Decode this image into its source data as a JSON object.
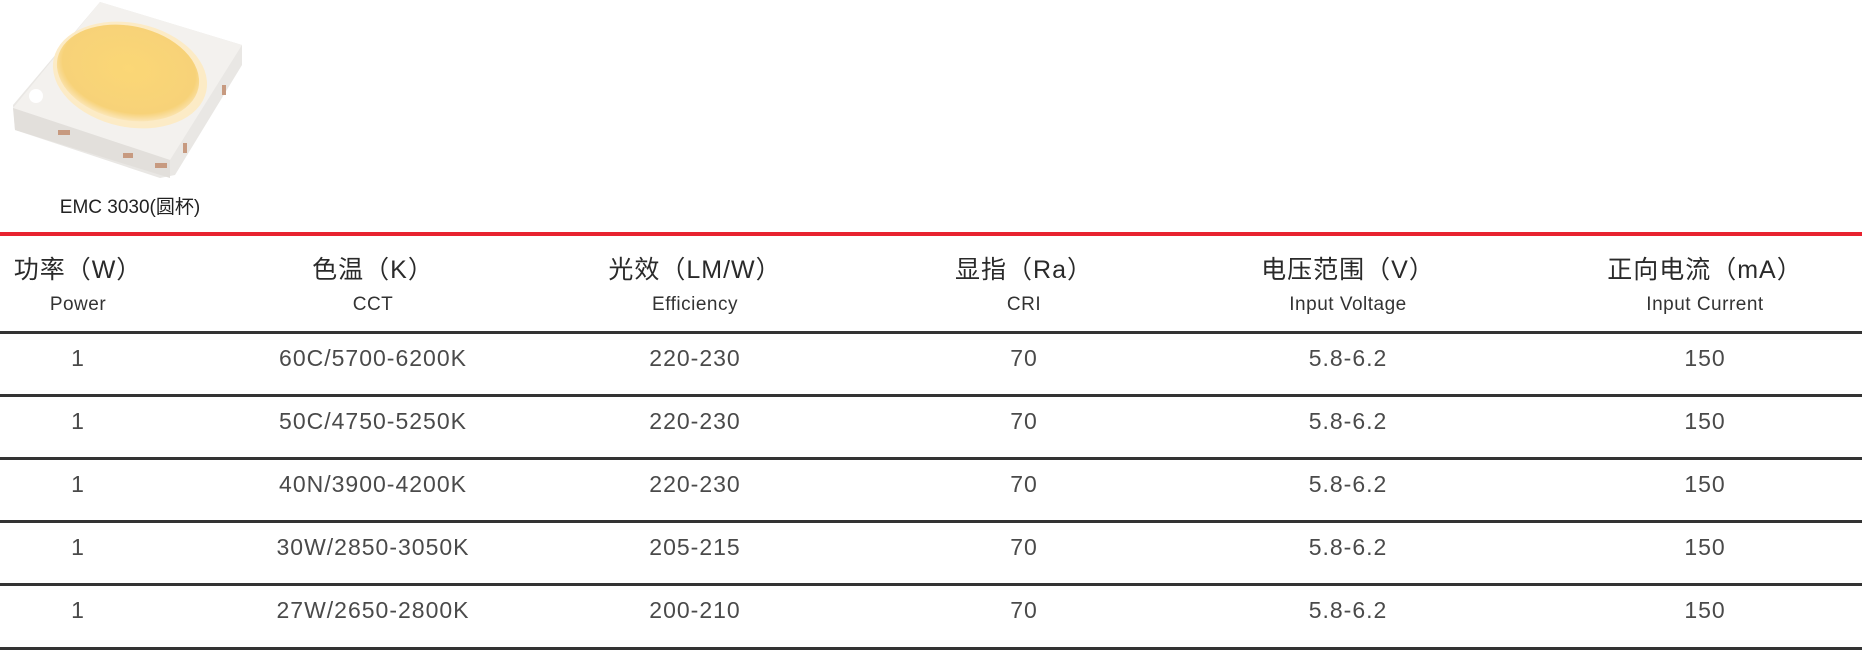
{
  "product": {
    "caption": "EMC 3030(圆杯)",
    "accent_color": "#e8222f"
  },
  "table": {
    "headers": [
      {
        "zh": "功率（W）",
        "en": "Power"
      },
      {
        "zh": "色温（K）",
        "en": "CCT"
      },
      {
        "zh": "光效（LM/W）",
        "en": "Efficiency"
      },
      {
        "zh": "显指（Ra）",
        "en": "CRI"
      },
      {
        "zh": "电压范围（V）",
        "en": "Input Voltage"
      },
      {
        "zh": "正向电流（mA）",
        "en": "Input Current"
      }
    ],
    "rows": [
      [
        "1",
        "60C/5700-6200K",
        "220-230",
        "70",
        "5.8-6.2",
        "150"
      ],
      [
        "1",
        "50C/4750-5250K",
        "220-230",
        "70",
        "5.8-6.2",
        "150"
      ],
      [
        "1",
        "40N/3900-4200K",
        "220-230",
        "70",
        "5.8-6.2",
        "150"
      ],
      [
        "1",
        "30W/2850-3050K",
        "205-215",
        "70",
        "5.8-6.2",
        "150"
      ],
      [
        "1",
        "27W/2650-2800K",
        "200-210",
        "70",
        "5.8-6.2",
        "150"
      ]
    ]
  }
}
